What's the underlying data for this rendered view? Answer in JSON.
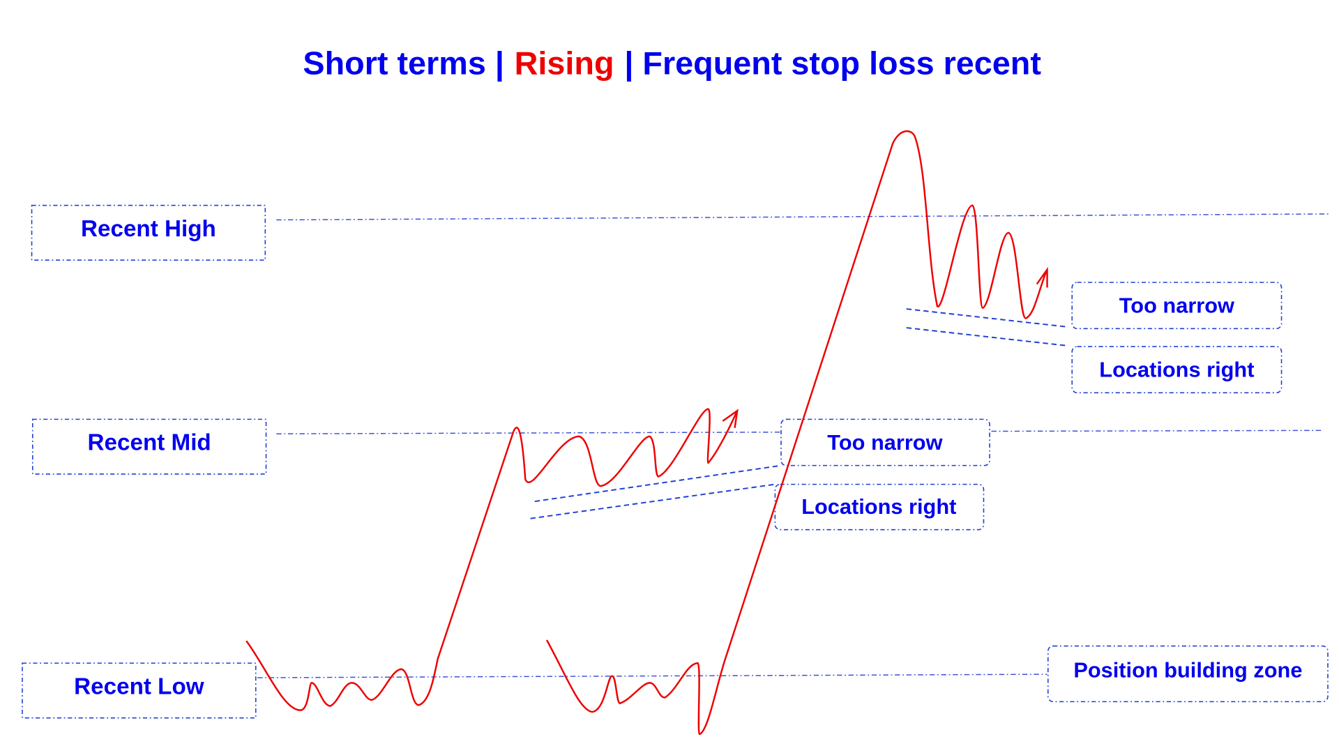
{
  "title": {
    "parts": [
      "Short terms |",
      "Rising",
      "| Frequent stop loss recent"
    ]
  },
  "levels": [
    "Recent High",
    "Recent Mid",
    "Recent Low"
  ],
  "annotations": [
    "Too narrow",
    "Locations right",
    "Too narrow",
    "Locations right",
    "Position building zone"
  ]
}
